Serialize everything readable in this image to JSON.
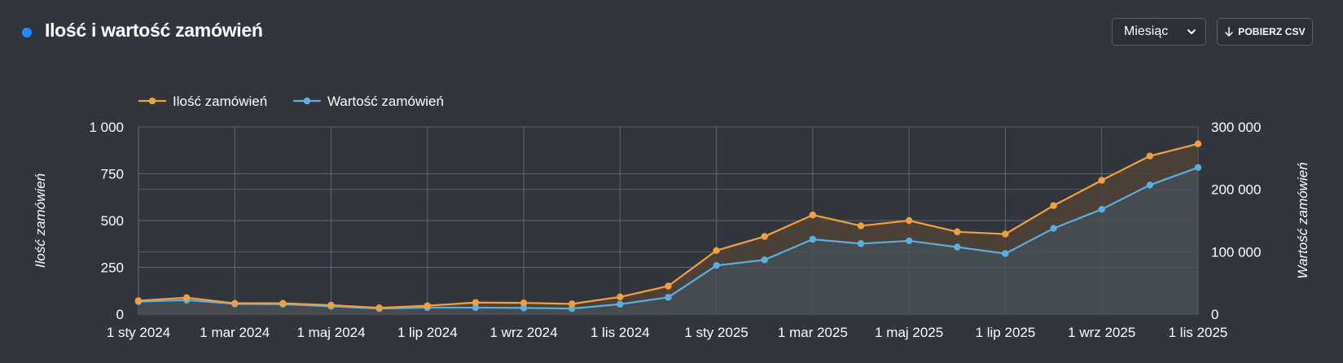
{
  "header": {
    "title": "Ilość i wartość zamówień",
    "period_select": {
      "value": "Miesiąc",
      "icon": "chevron-down-icon"
    },
    "csv_button": {
      "label": "POBIERZ CSV",
      "icon": "arrow-down-icon"
    }
  },
  "chart_data": {
    "type": "line",
    "categories": [
      "1 sty 2024",
      "1 lut 2024",
      "1 mar 2024",
      "1 kwi 2024",
      "1 maj 2024",
      "1 cze 2024",
      "1 lip 2024",
      "1 sie 2024",
      "1 wrz 2024",
      "1 paź 2024",
      "1 lis 2024",
      "1 gru 2024",
      "1 sty 2025",
      "1 lut 2025",
      "1 mar 2025",
      "1 kwi 2025",
      "1 maj 2025",
      "1 cze 2025",
      "1 lip 2025",
      "1 sie 2025",
      "1 wrz 2025",
      "1 paź 2025",
      "1 lis 2025"
    ],
    "x_tick_labels": [
      "1 sty 2024",
      "1 mar 2024",
      "1 maj 2024",
      "1 lip 2024",
      "1 wrz 2024",
      "1 lis 2024",
      "1 sty 2025",
      "1 mar 2025",
      "1 maj 2025",
      "1 lip 2025",
      "1 wrz 2025",
      "1 lis 2025"
    ],
    "series": [
      {
        "name": "Ilość zamówień",
        "axis": "left",
        "color": "#f0a040",
        "values": [
          72,
          88,
          58,
          58,
          48,
          34,
          45,
          62,
          60,
          55,
          92,
          150,
          340,
          415,
          530,
          472,
          500,
          440,
          428,
          580,
          715,
          845,
          910
        ]
      },
      {
        "name": "Wartość zamówień",
        "axis": "right",
        "color": "#5aaee0",
        "values": [
          20000,
          22500,
          16500,
          16000,
          12500,
          9000,
          10500,
          10500,
          10000,
          9000,
          16000,
          27000,
          78000,
          87000,
          120000,
          113000,
          117500,
          107500,
          97000,
          137500,
          168000,
          207000,
          235000
        ]
      }
    ],
    "y_left": {
      "label": "Ilość zamówień",
      "ticks": [
        0,
        250,
        500,
        750,
        1000
      ],
      "tick_labels": [
        "0",
        "250",
        "500",
        "750",
        "1 000"
      ],
      "ylim": [
        0,
        1000
      ]
    },
    "y_right": {
      "label": "Wartość zamówień",
      "ticks": [
        0,
        100000,
        200000,
        300000
      ],
      "tick_labels": [
        "0",
        "100 000",
        "200 000",
        "300 000"
      ],
      "ylim": [
        0,
        300000
      ]
    },
    "grid": true,
    "legend_position": "top-left",
    "fill_area": true
  }
}
